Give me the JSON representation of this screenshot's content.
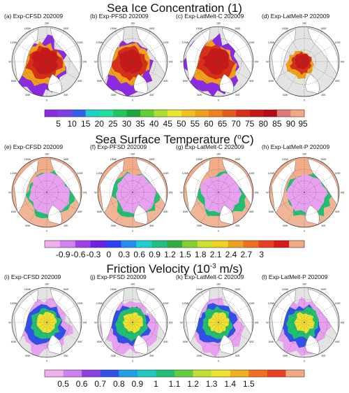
{
  "sections": [
    {
      "title": "Sea Ice Concentration (1)",
      "title_parts": {
        "pre": "Sea Ice Concentration (1)",
        "sup": "",
        "post": ""
      },
      "field": "sic",
      "panels": [
        {
          "label": "(a) Exp-CFSD 202009"
        },
        {
          "label": "(b) Exp-PFSD 202009"
        },
        {
          "label": "(c) Exp-LatMelt-C 202009"
        },
        {
          "label": "(d) Exp-LatMelt-P 202009"
        }
      ],
      "colorbar": {
        "colors": [
          "#8a2be2",
          "#7b3fe4",
          "#2f5ff0",
          "#1bd0c8",
          "#21e0a0",
          "#1ec85a",
          "#1aa83a",
          "#5fd030",
          "#a8e030",
          "#e8e830",
          "#f0c020",
          "#f0a018",
          "#f08018",
          "#e85a18",
          "#d83018",
          "#c81818",
          "#b80818",
          "#e07878",
          "#f4a882"
        ],
        "ticks": [
          "5",
          "10",
          "15",
          "20",
          "25",
          "30",
          "35",
          "40",
          "45",
          "50",
          "55",
          "60",
          "65",
          "70",
          "75",
          "80",
          "85",
          "90",
          "95"
        ]
      }
    },
    {
      "title": "Sea Surface Temperature (oC)",
      "title_parts": {
        "pre": "Sea Surface Temperature (",
        "sup": "o",
        "post": "C)"
      },
      "field": "sst",
      "panels": [
        {
          "label": "(e) Exp-CFSD 202009"
        },
        {
          "label": "(f) Exp-PFSD 202009"
        },
        {
          "label": "(g) Exp-LatMelt-C 202009"
        },
        {
          "label": "(h) Exp-LatMelt-P 202009"
        }
      ],
      "colorbar": {
        "colors": [
          "#f0b0f0",
          "#d080f0",
          "#a040e8",
          "#7020e0",
          "#3040f0",
          "#2090f0",
          "#20d0d0",
          "#20c080",
          "#30b040",
          "#80d030",
          "#d0e030",
          "#f0d020",
          "#f0a020",
          "#f07020",
          "#e84020",
          "#d81818",
          "#f4a882"
        ],
        "ticks": [
          "-0.9",
          "-0.6",
          "-0.3",
          "0",
          "0.3",
          "0.6",
          "0.9",
          "1.2",
          "1.5",
          "1.8",
          "2.1",
          "2.4",
          "2.7",
          "3"
        ]
      }
    },
    {
      "title": "Friction Velocity (10-3 m/s)",
      "title_parts": {
        "pre": "Friction Velocity (10",
        "sup": "-3",
        "post": " m/s)"
      },
      "field": "ustar",
      "panels": [
        {
          "label": "(i) Exp-CFSD 202009"
        },
        {
          "label": "(j) Exp-PFSD 202009"
        },
        {
          "label": "(k) Exp-LatMelt-C 202009"
        },
        {
          "label": "(l) Exp-LatMelt-P 202009"
        }
      ],
      "colorbar": {
        "colors": [
          "#f0b0f0",
          "#d080f0",
          "#9040e0",
          "#3050e8",
          "#20a0e8",
          "#20c8c0",
          "#20c070",
          "#60d040",
          "#c0e030",
          "#f0e030",
          "#f0b020",
          "#f07020",
          "#e84020",
          "#f4a882"
        ],
        "ticks": [
          "0.5",
          "0.6",
          "0.7",
          "0.8",
          "0.9",
          "1",
          "1.1",
          "1.2",
          "1.3",
          "1.4",
          "1.5"
        ]
      }
    }
  ],
  "map_labels": {
    "lon_top": "180",
    "lon_ul": "150W",
    "lon_ur": "150E",
    "lon_l1": "120W",
    "lon_r1": "120E",
    "lon_l2": "90W",
    "lon_r2": "90E",
    "lon_l3": "60W",
    "lon_r3": "60E",
    "lon_bl": "30W",
    "lon_br": "30E",
    "lon_bottom": "0"
  },
  "colors": {
    "ocean": "#e3e3e3",
    "land": "#ffffff",
    "sst_warm": "#f4a882"
  },
  "chart_data": [
    {
      "type": "heatmap",
      "title": "Sea Ice Concentration (1)",
      "panels": [
        "(a) Exp-CFSD 202009",
        "(b) Exp-PFSD 202009",
        "(c) Exp-LatMelt-C 202009",
        "(d) Exp-LatMelt-P 202009"
      ],
      "colorbar_ticks": [
        5,
        10,
        15,
        20,
        25,
        30,
        35,
        40,
        45,
        50,
        55,
        60,
        65,
        70,
        75,
        80,
        85,
        90,
        95
      ],
      "projection": "north polar stereographic"
    },
    {
      "type": "heatmap",
      "title": "Sea Surface Temperature (oC)",
      "panels": [
        "(e) Exp-CFSD 202009",
        "(f) Exp-PFSD 202009",
        "(g) Exp-LatMelt-C 202009",
        "(h) Exp-LatMelt-P 202009"
      ],
      "colorbar_ticks": [
        -0.9,
        -0.6,
        -0.3,
        0,
        0.3,
        0.6,
        0.9,
        1.2,
        1.5,
        1.8,
        2.1,
        2.4,
        2.7,
        3
      ],
      "projection": "north polar stereographic"
    },
    {
      "type": "heatmap",
      "title": "Friction Velocity (10-3 m/s)",
      "panels": [
        "(i) Exp-CFSD 202009",
        "(j) Exp-PFSD 202009",
        "(k) Exp-LatMelt-C 202009",
        "(l) Exp-LatMelt-P 202009"
      ],
      "colorbar_ticks": [
        0.5,
        0.6,
        0.7,
        0.8,
        0.9,
        1,
        1.1,
        1.2,
        1.3,
        1.4,
        1.5
      ],
      "projection": "north polar stereographic"
    }
  ]
}
